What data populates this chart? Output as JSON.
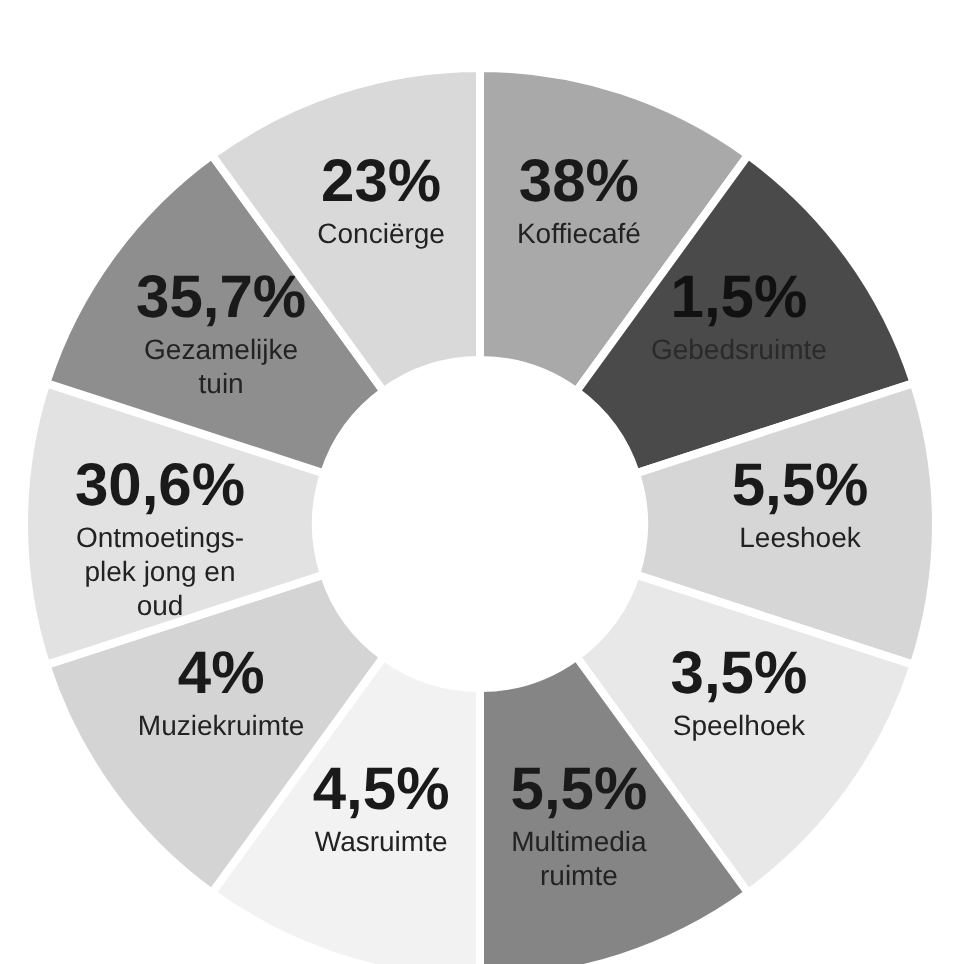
{
  "chart_data": {
    "type": "other",
    "categories": [
      "Koffiecafé",
      "Gebedsruimte",
      "Leeshoek",
      "Speelhoek",
      "Multimedia\nruimte",
      "Wasruimte",
      "Muziekruimte",
      "Ontmoetings-\nplek jong en\noud",
      "Gezamelijke\ntuin",
      "Conciërge"
    ],
    "values": [
      38,
      1.5,
      5.5,
      3.5,
      5.5,
      4.5,
      4,
      30.6,
      35.7,
      23
    ],
    "value_labels": [
      "38%",
      "1,5%",
      "5,5%",
      "3,5%",
      "5,5%",
      "4,5%",
      "4%",
      "30,6%",
      "35,7%",
      "23%"
    ],
    "colors": [
      "#a9a9a9",
      "#4a4a4a",
      "#d6d6d6",
      "#e8e8e8",
      "#858585",
      "#f2f2f2",
      "#d4d4d4",
      "#e2e2e2",
      "#8e8e8e",
      "#d9d9d9"
    ]
  }
}
